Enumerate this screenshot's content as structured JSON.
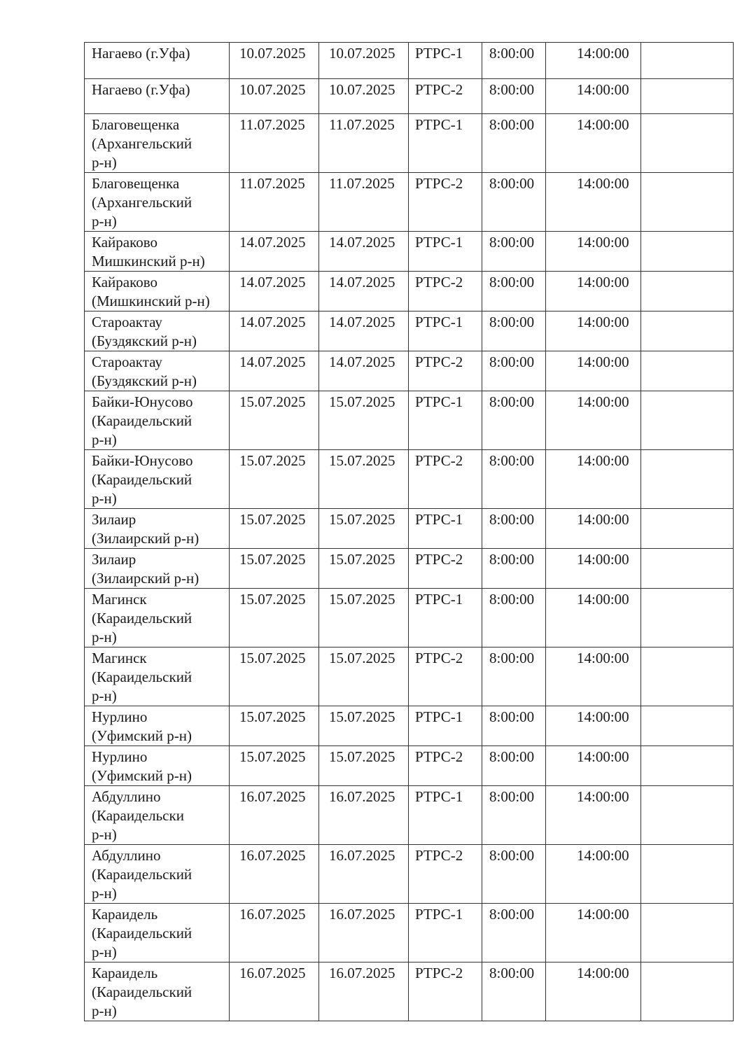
{
  "table": {
    "rows": [
      [
        "Нагаево (г.Уфа)",
        "10.07.2025",
        "10.07.2025",
        "РТРС-1",
        "8:00:00",
        "14:00:00",
        ""
      ],
      [
        "Нагаево (г.Уфа)",
        "10.07.2025",
        "10.07.2025",
        "РТРС-2",
        "8:00:00",
        "14:00:00",
        ""
      ],
      [
        "Благовещенка\n(Архангельский\n р-н)",
        "11.07.2025",
        "11.07.2025",
        "РТРС-1",
        "8:00:00",
        "14:00:00",
        ""
      ],
      [
        "Благовещенка\n(Архангельский\n р-н)",
        "11.07.2025",
        "11.07.2025",
        "РТРС-2",
        "8:00:00",
        "14:00:00",
        ""
      ],
      [
        "Кайраково\n Мишкинский р-н)",
        "14.07.2025",
        "14.07.2025",
        "РТРС-1",
        "8:00:00",
        "14:00:00",
        ""
      ],
      [
        "Кайраково\n(Мишкинский р-н)",
        "14.07.2025",
        "14.07.2025",
        "РТРС-2",
        "8:00:00",
        "14:00:00",
        ""
      ],
      [
        "Староактау\n(Буздякский р-н)",
        "14.07.2025",
        "14.07.2025",
        "РТРС-1",
        "8:00:00",
        "14:00:00",
        ""
      ],
      [
        "Староактау\n(Буздякский р-н)",
        "14.07.2025",
        "14.07.2025",
        "РТРС-2",
        "8:00:00",
        "14:00:00",
        ""
      ],
      [
        "Байки-Юнусово\n(Караидельский\nр-н)",
        "15.07.2025",
        "15.07.2025",
        "РТРС-1",
        "8:00:00",
        "14:00:00",
        ""
      ],
      [
        "Байки-Юнусово\n(Караидельский\nр-н)",
        "15.07.2025",
        "15.07.2025",
        "РТРС-2",
        "8:00:00",
        "14:00:00",
        ""
      ],
      [
        "Зилаир\n(Зилаирский р-н)",
        "15.07.2025",
        "15.07.2025",
        "РТРС-1",
        "8:00:00",
        "14:00:00",
        ""
      ],
      [
        "Зилаир\n(Зилаирский р-н)",
        "15.07.2025",
        "15.07.2025",
        "РТРС-2",
        "8:00:00",
        "14:00:00",
        ""
      ],
      [
        "Магинск\n(Караидельский\n р-н)",
        "15.07.2025",
        "15.07.2025",
        "РТРС-1",
        "8:00:00",
        "14:00:00",
        ""
      ],
      [
        "Магинск\n(Караидельский\nр-н)",
        "15.07.2025",
        "15.07.2025",
        "РТРС-2",
        "8:00:00",
        "14:00:00",
        ""
      ],
      [
        "Нурлино\n(Уфимский р-н)",
        "15.07.2025",
        "15.07.2025",
        "РТРС-1",
        "8:00:00",
        "14:00:00",
        ""
      ],
      [
        "Нурлино\n(Уфимский р-н)",
        "15.07.2025",
        "15.07.2025",
        "РТРС-2",
        "8:00:00",
        "14:00:00",
        ""
      ],
      [
        "Абдуллино\n (Караидельски\nр-н)",
        "16.07.2025",
        "16.07.2025",
        "РТРС-1",
        "8:00:00",
        "14:00:00",
        ""
      ],
      [
        "Абдуллино\n(Караидельский\nр-н)",
        "16.07.2025",
        "16.07.2025",
        "РТРС-2",
        "8:00:00",
        "14:00:00",
        ""
      ],
      [
        "Караидель\n(Караидельский\n р-н)",
        "16.07.2025",
        "16.07.2025",
        "РТРС-1",
        "8:00:00",
        "14:00:00",
        ""
      ],
      [
        "Караидель\n(Караидельский\n р-н)",
        "16.07.2025",
        "16.07.2025",
        "РТРС-2",
        "8:00:00",
        "14:00:00",
        ""
      ]
    ]
  }
}
